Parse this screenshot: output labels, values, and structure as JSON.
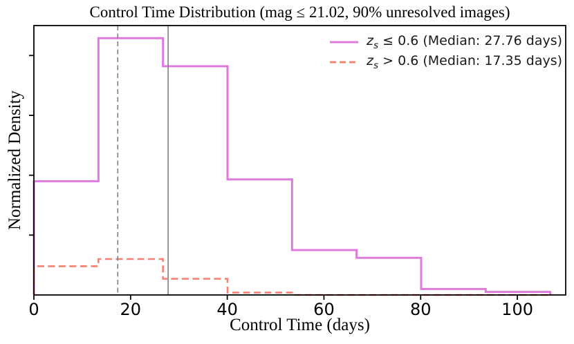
{
  "chart_data": {
    "type": "step-histogram",
    "title": "Control Time Distribution (mag ≤ 21.02, 90% unresolved images)",
    "xlabel": "Control Time (days)",
    "ylabel": "Normalized Density",
    "xlim": [
      0,
      110
    ],
    "ylim": [
      0,
      4.5
    ],
    "x_ticks": [
      0,
      20,
      40,
      60,
      80,
      100
    ],
    "y_ticks_unlabeled": [
      1,
      2,
      3,
      4
    ],
    "grid": false,
    "legend_position": "upper right",
    "bin_edges_days": [
      0,
      13.35,
      26.7,
      40.05,
      53.4,
      66.75,
      80.1,
      93.45,
      106.8
    ],
    "value_units": "density in y-axis tick units (y tick labels not shown)",
    "series": [
      {
        "name": "zs <= 0.6",
        "median_days": 27.76,
        "color": "#DF7ADD",
        "line_style": "solid",
        "line_width": 3,
        "values": [
          1.9,
          4.29,
          3.82,
          1.93,
          0.75,
          0.62,
          0.1,
          0.05
        ]
      },
      {
        "name": "zs > 0.6",
        "median_days": 17.35,
        "color": "#FA8072",
        "line_style": "dashed",
        "line_width": 2.6,
        "values": [
          0.48,
          0.6,
          0.27,
          0.04,
          0,
          0,
          0,
          0
        ]
      }
    ],
    "vlines": [
      {
        "x_days": 17.35,
        "style": "dashed",
        "color": "#7d7d7d"
      },
      {
        "x_days": 27.76,
        "style": "solid",
        "color": "#7d7d7d"
      }
    ]
  },
  "legend": {
    "items": [
      {
        "var": "z",
        "sub": "s",
        "rest": " ≤ 0.6 (Median: 27.76 days)",
        "color": "#DF7ADD",
        "dash": "solid"
      },
      {
        "var": "z",
        "sub": "s",
        "rest": " > 0.6 (Median: 17.35 days)",
        "color": "#FA8072",
        "dash": "dashed"
      }
    ]
  }
}
